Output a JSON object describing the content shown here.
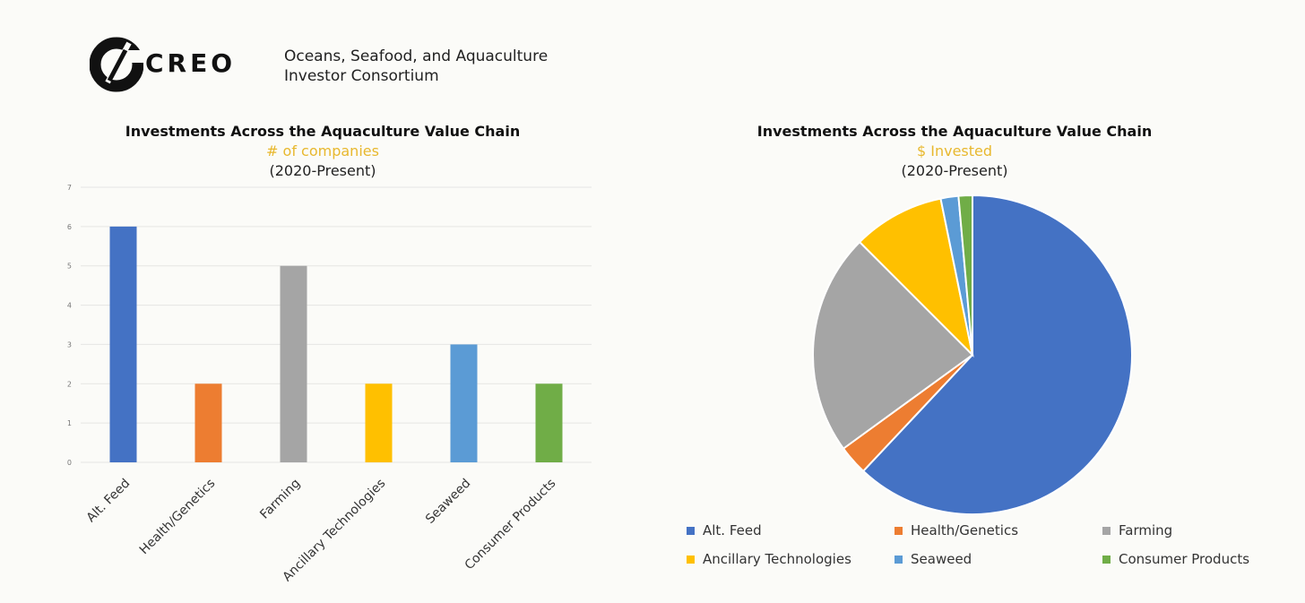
{
  "header": {
    "logo_text": "CREO",
    "consortium_line1": "Oceans, Seafood, and Aquaculture",
    "consortium_line2": "Investor Consortium"
  },
  "colors": {
    "blue": "#4472c4",
    "orange": "#ed7d31",
    "gray": "#a5a5a5",
    "gold": "#ffc000",
    "lightblue": "#5b9bd5",
    "green": "#70ad47",
    "subtitle": "#e8b82e"
  },
  "chart_data": [
    {
      "type": "bar",
      "title": "Investments Across the Aquaculture Value Chain",
      "subtitle": "# of companies",
      "period": "(2020-Present)",
      "categories": [
        "Alt. Feed",
        "Health/Genetics",
        "Farming",
        "Ancillary Technologies",
        "Seaweed",
        "Consumer Products"
      ],
      "values": [
        6,
        2,
        5,
        2,
        3,
        2
      ],
      "colors": [
        "#4472c4",
        "#ed7d31",
        "#a5a5a5",
        "#ffc000",
        "#5b9bd5",
        "#70ad47"
      ],
      "yticks": [
        0,
        1,
        2,
        3,
        4,
        5,
        6,
        7
      ],
      "ylim": [
        0,
        7
      ],
      "grid": true,
      "xlabel": "",
      "ylabel": ""
    },
    {
      "type": "pie",
      "title": "Investments Across the Aquaculture Value Chain",
      "subtitle": "$ Invested",
      "period": "(2020-Present)",
      "categories": [
        "Alt. Feed",
        "Health/Genetics",
        "Farming",
        "Ancillary Technologies",
        "Seaweed",
        "Consumer Products"
      ],
      "values": [
        62.0,
        3.0,
        22.5,
        9.3,
        1.8,
        1.4
      ],
      "colors": [
        "#4472c4",
        "#ed7d31",
        "#a5a5a5",
        "#ffc000",
        "#5b9bd5",
        "#70ad47"
      ],
      "legend": "bottom"
    }
  ]
}
